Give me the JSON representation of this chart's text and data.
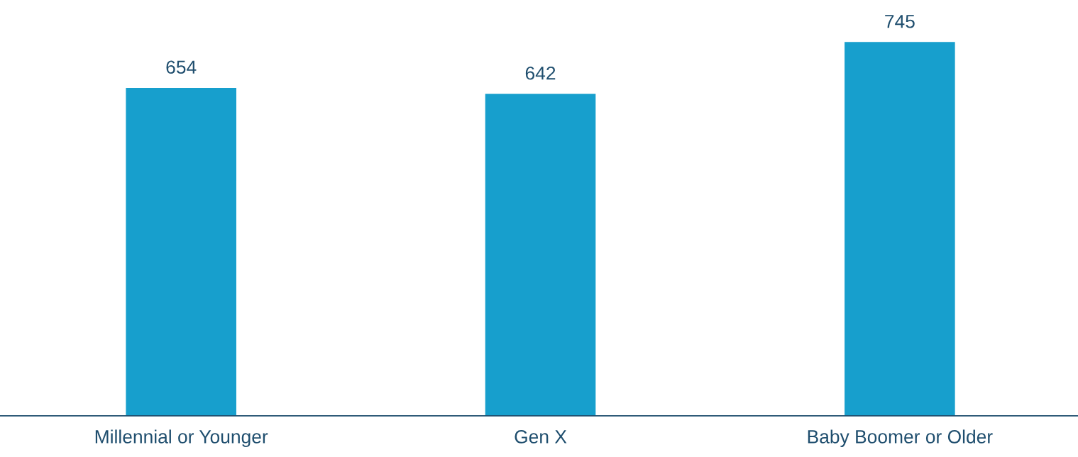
{
  "chart_data": {
    "type": "bar",
    "categories": [
      "Millennial or Younger",
      "Gen X",
      "Baby Boomer or Older"
    ],
    "values": [
      654,
      642,
      745
    ],
    "color": "#179fcd",
    "data_labels": true,
    "grid": false,
    "legend": false
  }
}
